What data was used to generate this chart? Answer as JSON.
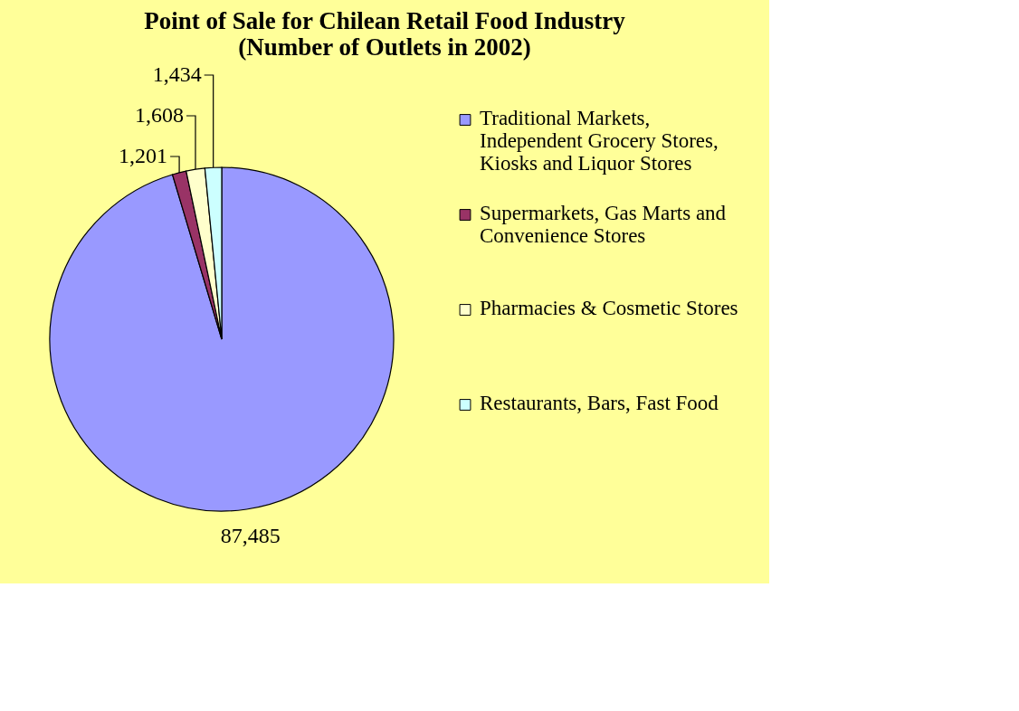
{
  "chart_data": {
    "type": "pie",
    "title": [
      "Point of Sale for Chilean Retail Food Industry",
      "(Number of Outlets in 2002)"
    ],
    "categories": [
      "Traditional Markets, Independent Grocery Stores, Kiosks and Liquor Stores",
      "Supermarkets, Gas Marts and Convenience Stores",
      "Pharmacies & Cosmetic Stores",
      "Restaurants, Bars, Fast Food"
    ],
    "values": [
      87485,
      1201,
      1608,
      1434
    ],
    "colors": [
      "#9999ff",
      "#993366",
      "#ffffcc",
      "#ccffff"
    ],
    "value_labels": [
      "87,485",
      "1,201",
      "1,608",
      "1,434"
    ],
    "legend": "right"
  }
}
